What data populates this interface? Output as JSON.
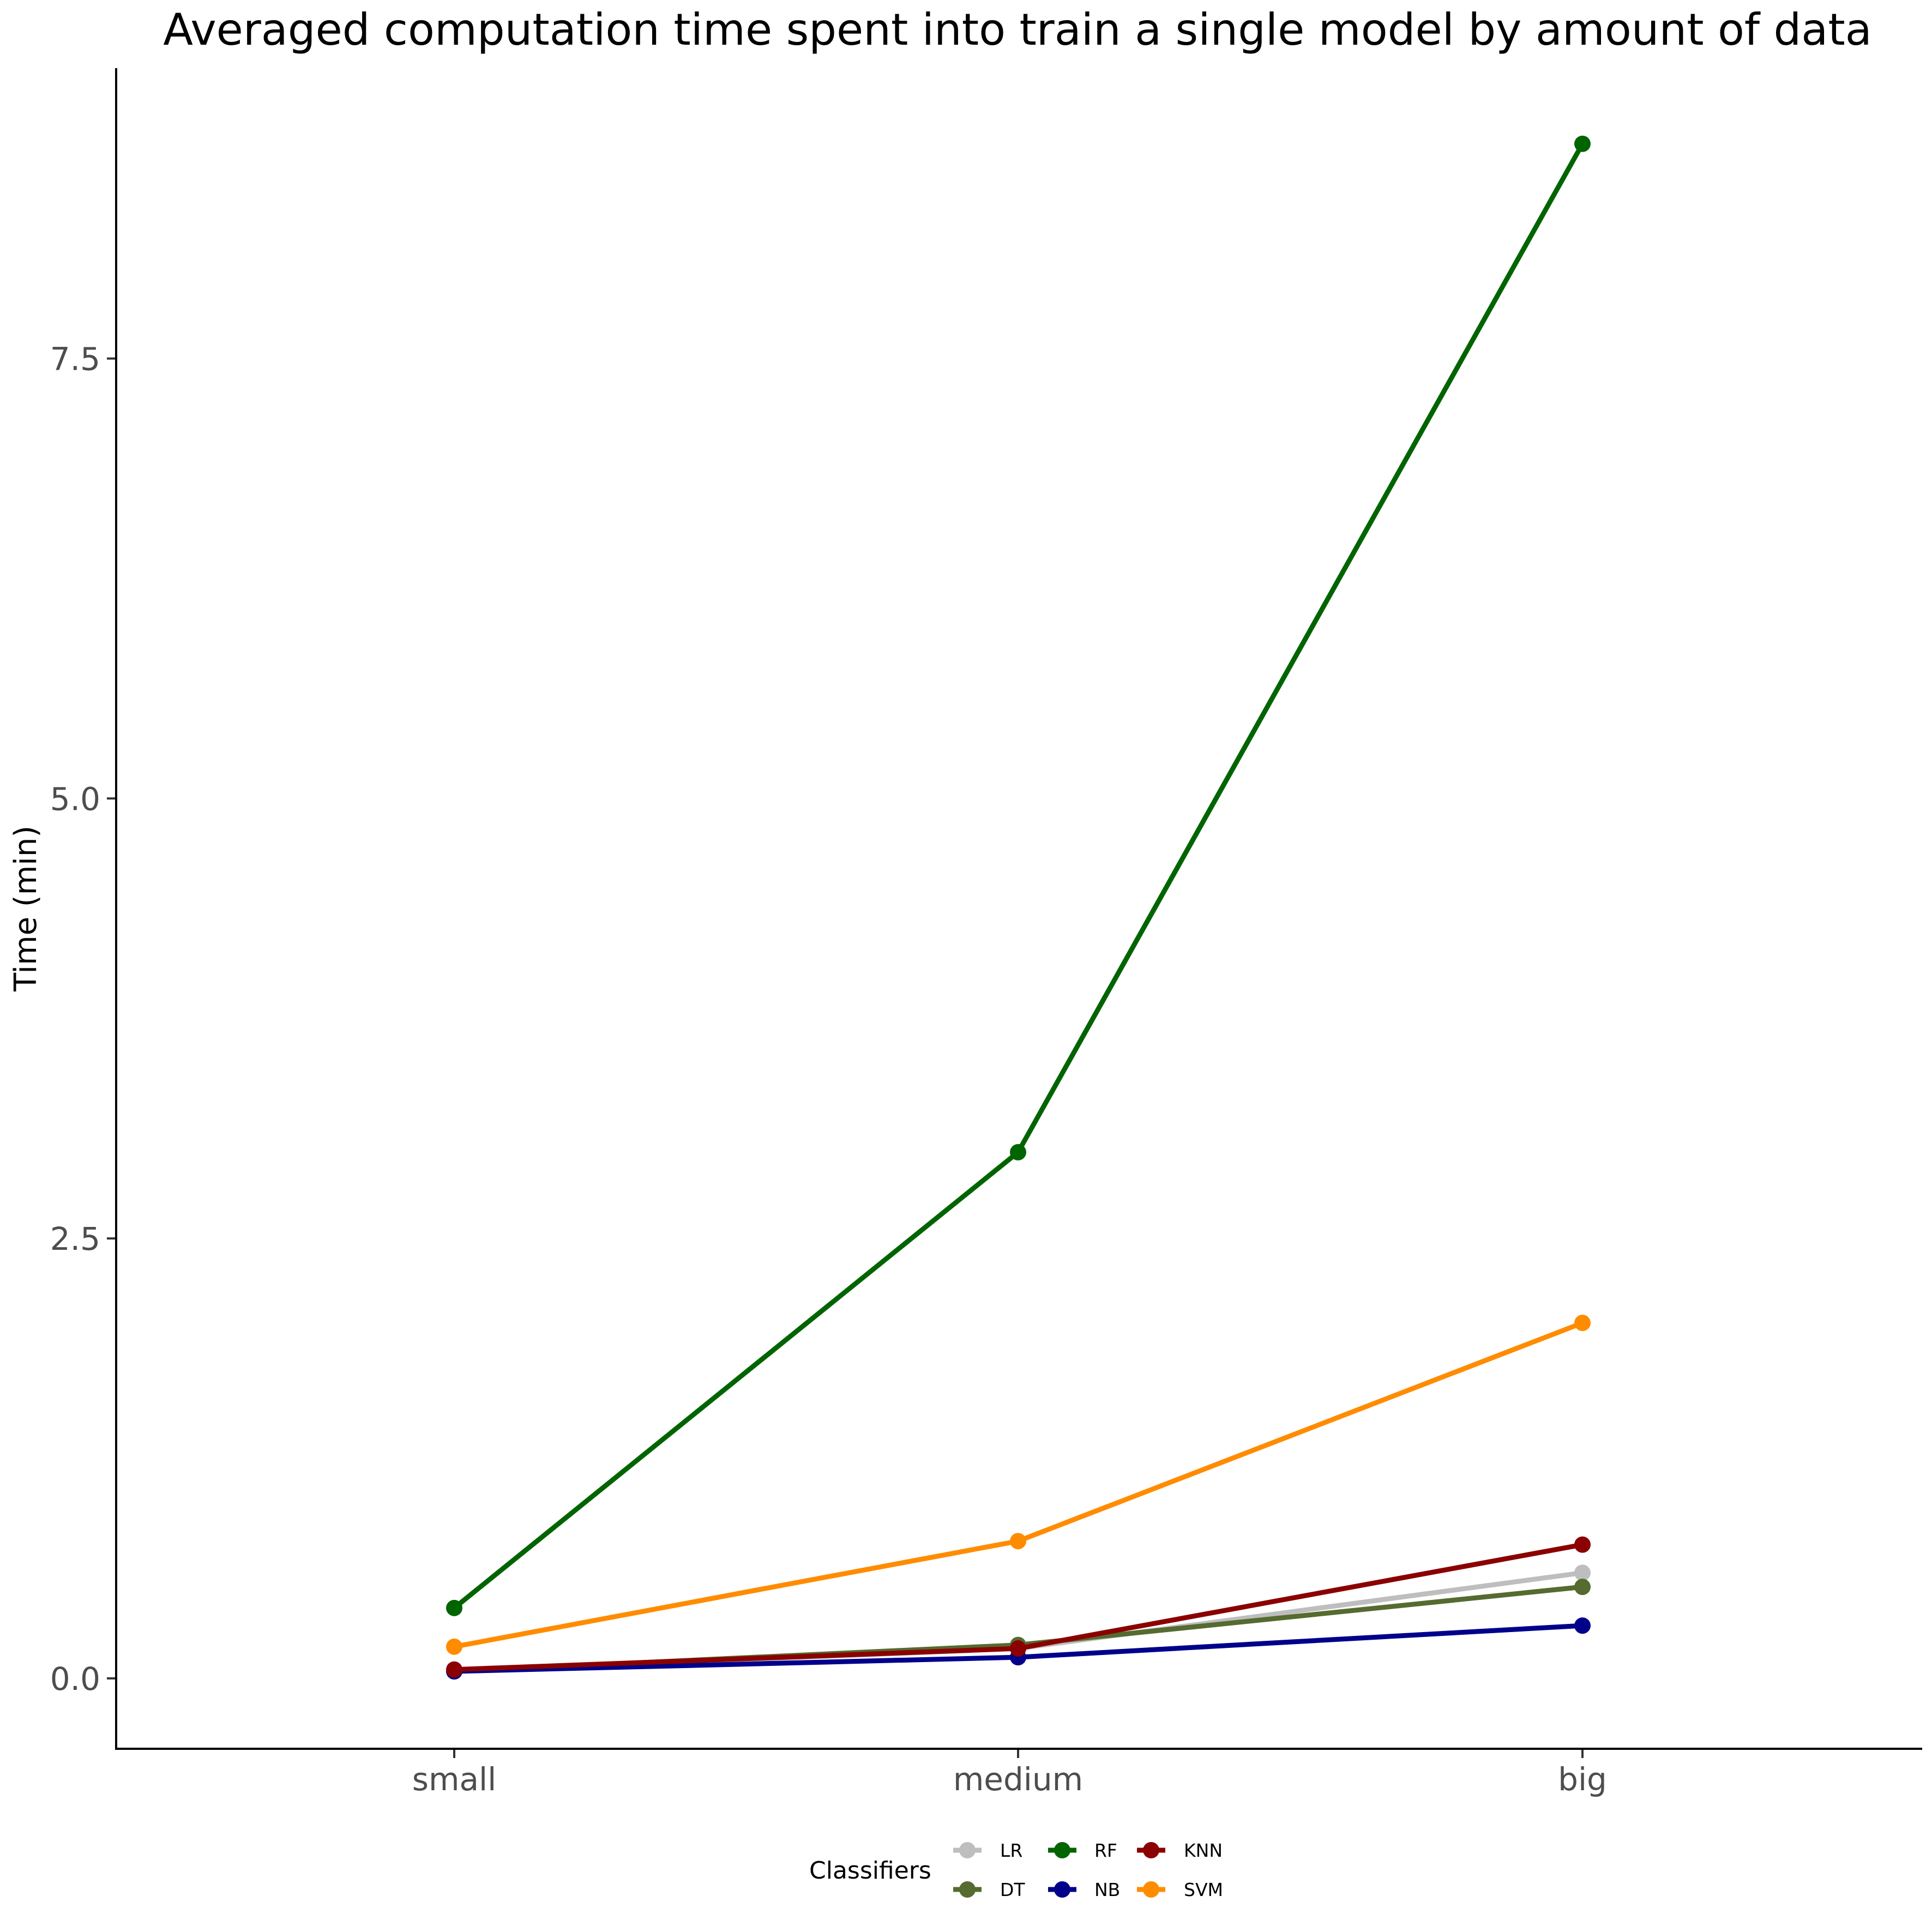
{
  "chart_data": {
    "type": "line",
    "title": "Averaged computation time spent into train a single model by amount of data",
    "xlabel": "",
    "ylabel": "Time (min)",
    "categories": [
      "small",
      "medium",
      "big"
    ],
    "y_ticks": [
      0.0,
      2.5,
      5.0,
      7.5
    ],
    "y_tick_labels": [
      "0.0",
      "2.5",
      "5.0",
      "7.5"
    ],
    "ylim": [
      -0.4,
      9.15
    ],
    "grid": false,
    "legend": {
      "title": "Classifiers",
      "position": "bottom"
    },
    "series": [
      {
        "name": "LR",
        "color": "#BEBEBE",
        "values": [
          0.04,
          0.17,
          0.6
        ]
      },
      {
        "name": "DT",
        "color": "#556B2F",
        "values": [
          0.04,
          0.19,
          0.52
        ]
      },
      {
        "name": "RF",
        "color": "#006400",
        "values": [
          0.4,
          2.99,
          8.72
        ]
      },
      {
        "name": "NB",
        "color": "#00008B",
        "values": [
          0.04,
          0.12,
          0.3
        ]
      },
      {
        "name": "KNN",
        "color": "#8B0000",
        "values": [
          0.05,
          0.17,
          0.76
        ]
      },
      {
        "name": "SVM",
        "color": "#FF8C00",
        "values": [
          0.18,
          0.78,
          2.02
        ]
      }
    ]
  }
}
